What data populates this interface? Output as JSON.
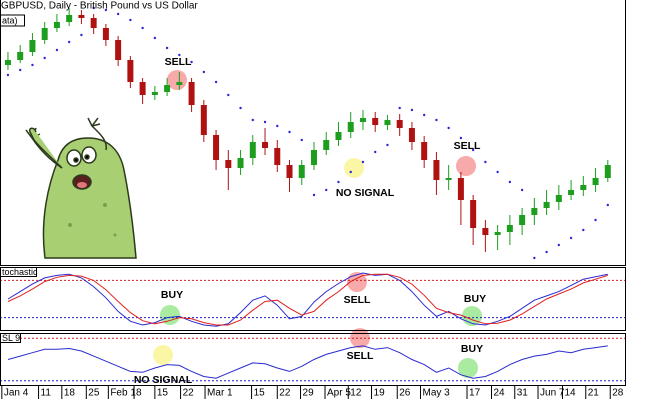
{
  "chart_data": [
    {
      "type": "candlestick",
      "title": "GBPUSD, Daily - British Pound vs US Dollar",
      "label": "ata)",
      "xlim": [
        -0.65,
        49.67
      ],
      "ylim": [
        1.38,
        1.645
      ],
      "up_color": "#1e9e1e",
      "down_color": "#b01212",
      "open": [
        1.58,
        1.585,
        1.593,
        1.605,
        1.617,
        1.623,
        1.63,
        1.627,
        1.617,
        1.605,
        1.585,
        1.563,
        1.55,
        1.553,
        1.56,
        1.563,
        1.54,
        1.51,
        1.485,
        1.477,
        1.487,
        1.503,
        1.497,
        1.48,
        1.467,
        1.48,
        1.495,
        1.505,
        1.513,
        1.523,
        1.527,
        1.52,
        1.525,
        1.517,
        1.503,
        1.485,
        1.465,
        1.467,
        1.445,
        1.417,
        1.41,
        1.413,
        1.42,
        1.43,
        1.437,
        1.443,
        1.45,
        1.455,
        1.46,
        1.467
      ],
      "high": [
        1.593,
        1.6,
        1.612,
        1.623,
        1.631,
        1.637,
        1.635,
        1.631,
        1.621,
        1.609,
        1.589,
        1.567,
        1.559,
        1.567,
        1.573,
        1.567,
        1.545,
        1.515,
        1.495,
        1.495,
        1.51,
        1.517,
        1.505,
        1.485,
        1.485,
        1.503,
        1.513,
        1.523,
        1.533,
        1.535,
        1.533,
        1.53,
        1.531,
        1.523,
        1.509,
        1.493,
        1.48,
        1.473,
        1.45,
        1.425,
        1.42,
        1.43,
        1.437,
        1.447,
        1.455,
        1.46,
        1.465,
        1.469,
        1.477,
        1.485
      ],
      "low": [
        1.575,
        1.582,
        1.589,
        1.601,
        1.613,
        1.619,
        1.621,
        1.611,
        1.599,
        1.579,
        1.557,
        1.541,
        1.545,
        1.549,
        1.555,
        1.533,
        1.503,
        1.475,
        1.455,
        1.47,
        1.48,
        1.49,
        1.473,
        1.453,
        1.46,
        1.475,
        1.49,
        1.499,
        1.507,
        1.515,
        1.513,
        1.515,
        1.509,
        1.495,
        1.477,
        1.45,
        1.455,
        1.42,
        1.4,
        1.393,
        1.395,
        1.4,
        1.41,
        1.42,
        1.43,
        1.435,
        1.445,
        1.449,
        1.453,
        1.463
      ],
      "close": [
        1.585,
        1.593,
        1.605,
        1.617,
        1.623,
        1.63,
        1.627,
        1.617,
        1.605,
        1.585,
        1.563,
        1.55,
        1.553,
        1.56,
        1.563,
        1.54,
        1.51,
        1.485,
        1.477,
        1.487,
        1.503,
        1.497,
        1.48,
        1.467,
        1.48,
        1.495,
        1.505,
        1.513,
        1.523,
        1.527,
        1.52,
        1.525,
        1.517,
        1.503,
        1.485,
        1.465,
        1.467,
        1.445,
        1.417,
        1.41,
        1.413,
        1.42,
        1.43,
        1.437,
        1.443,
        1.45,
        1.455,
        1.46,
        1.467,
        1.48
      ],
      "sar": {
        "color": "#2828d8",
        "values": [
          1.57,
          1.575,
          1.58,
          1.587,
          1.595,
          1.603,
          1.61,
          1.637,
          1.635,
          1.631,
          1.625,
          1.617,
          1.607,
          1.597,
          1.59,
          1.583,
          1.573,
          1.563,
          1.55,
          1.537,
          1.525,
          1.523,
          1.519,
          1.513,
          1.505,
          1.45,
          1.455,
          1.463,
          1.473,
          1.483,
          1.493,
          1.5,
          1.537,
          1.535,
          1.53,
          1.525,
          1.517,
          1.507,
          1.495,
          1.483,
          1.473,
          1.463,
          1.455,
          1.387,
          1.393,
          1.4,
          1.407,
          1.415,
          1.425,
          1.44
        ]
      },
      "annotations": [
        "SELL",
        "NO SIGNAL",
        "SELL"
      ]
    },
    {
      "type": "line",
      "label": "tochastic",
      "xlim": [
        -0.65,
        49.67
      ],
      "ylim": [
        0,
        100
      ],
      "levels": [
        {
          "value": 80,
          "color": "#d02020"
        },
        {
          "value": 20,
          "color": "#2020c0"
        }
      ],
      "series": [
        {
          "color": "#2a2ad0",
          "values": [
            50,
            62,
            74,
            84,
            88,
            90,
            84,
            70,
            52,
            30,
            14,
            8,
            12,
            20,
            22,
            14,
            8,
            6,
            10,
            28,
            48,
            55,
            40,
            18,
            22,
            45,
            62,
            75,
            86,
            92,
            88,
            90,
            80,
            62,
            40,
            22,
            30,
            18,
            10,
            8,
            14,
            22,
            35,
            48,
            55,
            62,
            72,
            82,
            86,
            90
          ]
        },
        {
          "color": "#e02020",
          "values": [
            46,
            55,
            66,
            78,
            85,
            88,
            87,
            80,
            65,
            46,
            28,
            15,
            10,
            14,
            20,
            18,
            12,
            8,
            8,
            16,
            32,
            46,
            48,
            35,
            24,
            30,
            48,
            62,
            78,
            88,
            90,
            90,
            85,
            74,
            56,
            35,
            28,
            24,
            16,
            10,
            11,
            16,
            26,
            38,
            50,
            58,
            66,
            76,
            82,
            88
          ]
        }
      ],
      "annotations": [
        "BUY",
        "SELL",
        "BUY"
      ]
    },
    {
      "type": "line",
      "label": "SL 9",
      "xlim": [
        -0.65,
        49.67
      ],
      "ylim": [
        0.97,
        1.03
      ],
      "levels": [
        {
          "value": 1.025,
          "color": "#d02020"
        },
        {
          "value": 0.975,
          "color": "#2020c0"
        }
      ],
      "series": [
        {
          "color": "#2a2ad0",
          "values": [
            1.0,
            1.004,
            1.008,
            1.012,
            1.012,
            1.013,
            1.01,
            1.004,
            0.998,
            0.992,
            0.986,
            0.985,
            0.99,
            0.994,
            0.993,
            0.986,
            0.98,
            0.978,
            0.984,
            0.99,
            0.996,
            0.995,
            0.99,
            0.986,
            0.992,
            1.0,
            1.006,
            1.01,
            1.014,
            1.016,
            1.012,
            1.014,
            1.008,
            1.0,
            0.994,
            0.985,
            0.99,
            0.982,
            0.978,
            0.98,
            0.986,
            0.994,
            1.0,
            1.004,
            1.006,
            1.01,
            1.008,
            1.012,
            1.014,
            1.016
          ]
        }
      ],
      "annotations": [
        "SELL",
        "BUY",
        "NO SIGNAL"
      ],
      "xticks": [
        {
          "value": -0.5,
          "label": "Jan 4"
        },
        {
          "value": 2.5,
          "label": "11"
        },
        {
          "value": 4.4,
          "label": "18"
        },
        {
          "value": 6.4,
          "label": "25"
        },
        {
          "value": 8.2,
          "label": "Feb 1"
        },
        {
          "value": 10.3,
          "label": "8"
        },
        {
          "value": 12.0,
          "label": "15"
        },
        {
          "value": 14.1,
          "label": "22"
        },
        {
          "value": 16.1,
          "label": "Mar 1"
        },
        {
          "value": 19.9,
          "label": "15"
        },
        {
          "value": 22.0,
          "label": "22"
        },
        {
          "value": 23.9,
          "label": "29"
        },
        {
          "value": 25.9,
          "label": "Apr 5"
        },
        {
          "value": 27.8,
          "label": "12"
        },
        {
          "value": 29.7,
          "label": "19"
        },
        {
          "value": 31.8,
          "label": "26"
        },
        {
          "value": 33.7,
          "label": "May 3"
        },
        {
          "value": 37.5,
          "label": "17"
        },
        {
          "value": 39.5,
          "label": "24"
        },
        {
          "value": 41.4,
          "label": "31"
        },
        {
          "value": 43.3,
          "label": "Jun 7"
        },
        {
          "value": 45.3,
          "label": "14"
        },
        {
          "value": 47.2,
          "label": "21"
        },
        {
          "value": 49.2,
          "label": "28"
        }
      ]
    }
  ]
}
